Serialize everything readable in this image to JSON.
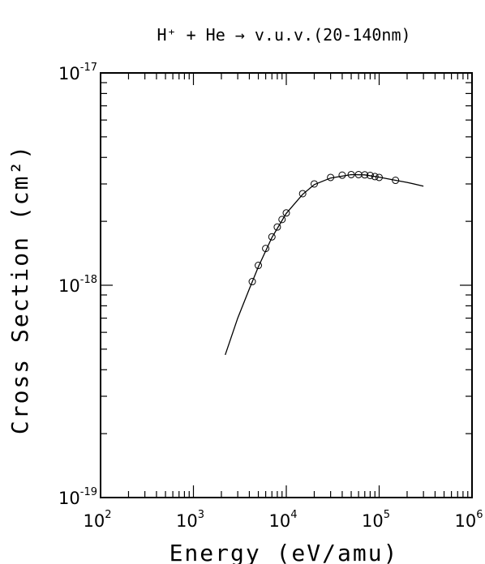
{
  "chart_data": {
    "type": "scatter",
    "title": "H⁺ + He → v.u.v.(20-140nm)",
    "xlabel": "Energy (eV/amu)",
    "ylabel": "Cross Section (cm²)",
    "x_scale": "log",
    "y_scale": "log",
    "xlim": [
      100,
      1000000
    ],
    "ylim": [
      1e-19,
      1e-17
    ],
    "grid": false,
    "x_ticks": [
      {
        "base": "10",
        "exp": "2",
        "value": 100
      },
      {
        "base": "10",
        "exp": "3",
        "value": 1000
      },
      {
        "base": "10",
        "exp": "4",
        "value": 10000
      },
      {
        "base": "10",
        "exp": "5",
        "value": 100000
      },
      {
        "base": "10",
        "exp": "6",
        "value": 1000000
      }
    ],
    "y_ticks": [
      {
        "base": "10",
        "exp": "-19",
        "value": 1e-19
      },
      {
        "base": "10",
        "exp": "-18",
        "value": 1e-18
      },
      {
        "base": "10",
        "exp": "-17",
        "value": 1e-17
      }
    ],
    "series": [
      {
        "kind": "points",
        "x": [
          4300,
          5000,
          6000,
          7000,
          8000,
          9000,
          10000,
          15000,
          20000,
          30000,
          40000,
          50000,
          60000,
          70000,
          80000,
          90000,
          100000,
          150000
        ],
        "y": [
          1.04e-18,
          1.24e-18,
          1.49e-18,
          1.69e-18,
          1.88e-18,
          2.04e-18,
          2.19e-18,
          2.7e-18,
          3e-18,
          3.22e-18,
          3.3e-18,
          3.32e-18,
          3.32e-18,
          3.31e-18,
          3.29e-18,
          3.25e-18,
          3.22e-18,
          3.12e-18
        ]
      },
      {
        "kind": "fit-line",
        "x": [
          2200,
          3000,
          4000,
          5000,
          7000,
          10000,
          15000,
          20000,
          30000,
          50000,
          70000,
          100000,
          150000,
          200000,
          300000
        ],
        "y": [
          4.7e-19,
          7e-19,
          9.6e-19,
          1.22e-18,
          1.68e-18,
          2.18e-18,
          2.68e-18,
          2.98e-18,
          3.2e-18,
          3.32e-18,
          3.31e-18,
          3.23e-18,
          3.12e-18,
          3.05e-18,
          2.93e-18
        ]
      }
    ]
  }
}
